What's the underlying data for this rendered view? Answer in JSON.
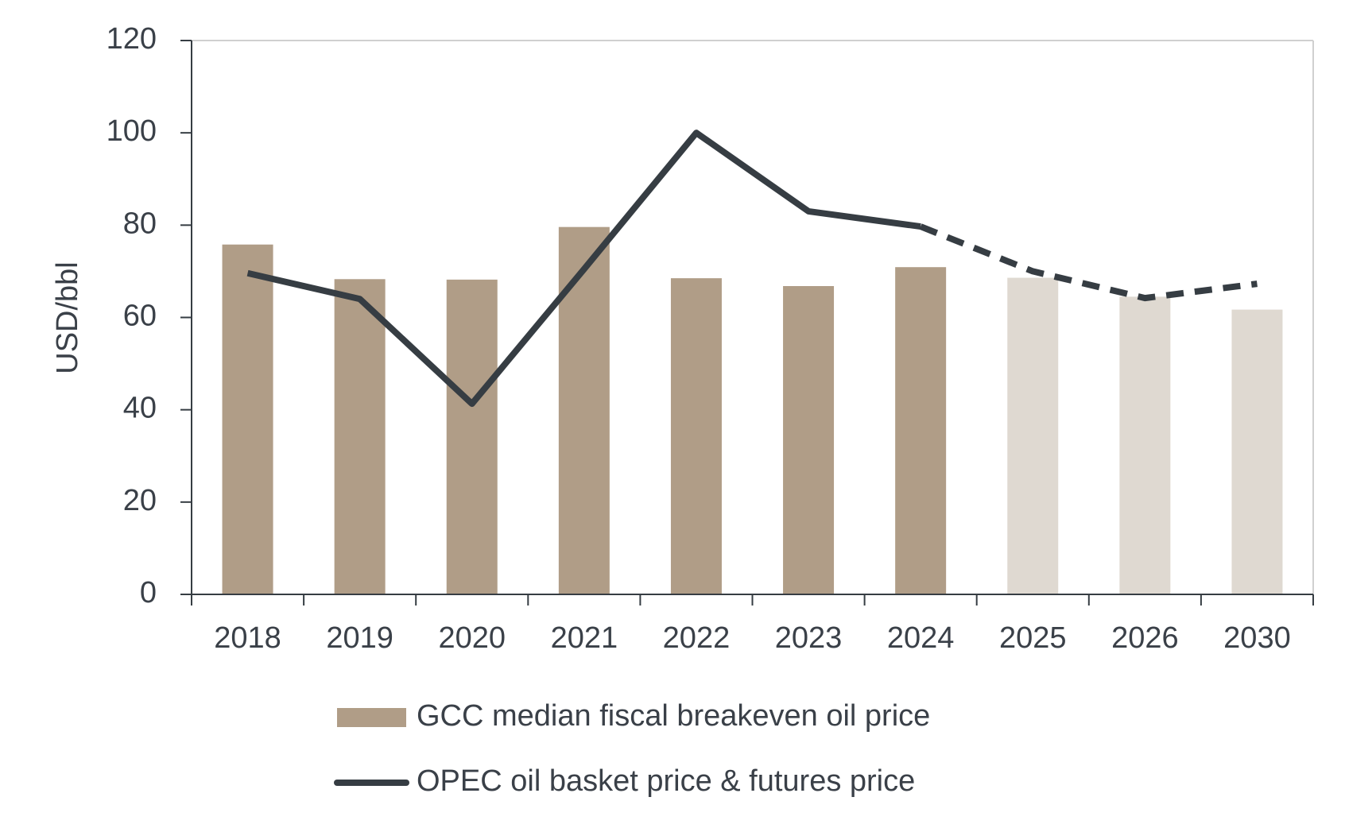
{
  "chart_data": {
    "type": "bar_line",
    "y_label": "USD/bbl",
    "categories": [
      "2018",
      "2019",
      "2020",
      "2021",
      "2022",
      "2023",
      "2024",
      "2025",
      "2026",
      "2030"
    ],
    "series": [
      {
        "name": "GCC median fiscal breakeven oil price",
        "type": "bar",
        "color": "#b09d87",
        "forecast_color": "#dfd9d1",
        "values": [
          75.8,
          68.3,
          68.2,
          79.6,
          68.5,
          66.8,
          70.9,
          68.6,
          64.5,
          61.7
        ]
      },
      {
        "name": "OPEC oil basket price & futures price",
        "type": "line",
        "color": "#363d43",
        "values": [
          69.6,
          64.0,
          41.3,
          70.5,
          100.0,
          83.0,
          79.7,
          70.0,
          64.2,
          67.3
        ]
      }
    ],
    "forecast_from": 7,
    "dashed_from": 6,
    "ylim": [
      0,
      120
    ],
    "yticks": [
      0,
      20,
      40,
      60,
      80,
      100,
      120
    ],
    "legend": "bottom"
  }
}
